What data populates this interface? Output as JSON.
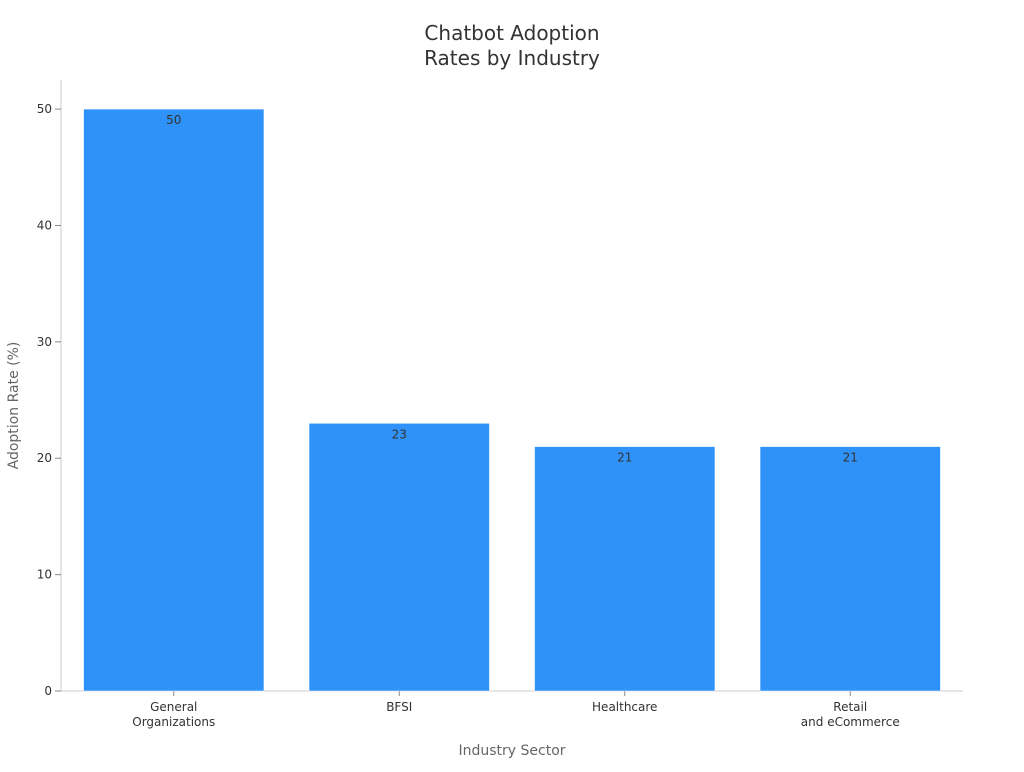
{
  "chart_data": {
    "type": "bar",
    "title": [
      "Chatbot Adoption",
      "Rates by Industry"
    ],
    "xlabel": "Industry Sector",
    "ylabel": "Adoption Rate (%)",
    "categories": [
      [
        "General",
        "Organizations"
      ],
      [
        "BFSI"
      ],
      [
        "Healthcare"
      ],
      [
        "Retail",
        "and eCommerce"
      ]
    ],
    "values": [
      50,
      23,
      21,
      21
    ],
    "data_labels": [
      "50",
      "23",
      "21",
      "21"
    ],
    "ylim": [
      0,
      52.5
    ],
    "yticks": [
      0,
      10,
      20,
      30,
      40,
      50
    ],
    "ytick_labels": [
      "0",
      "10",
      "20",
      "30",
      "40",
      "50"
    ],
    "bar_color": "#2f92f8",
    "grid": false,
    "legend": "none"
  }
}
